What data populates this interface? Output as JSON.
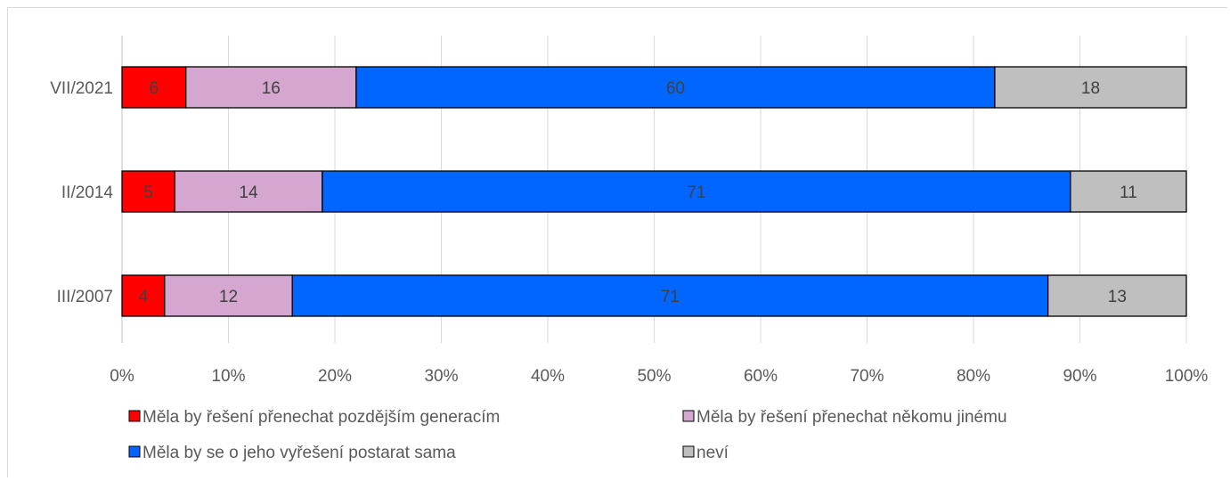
{
  "chart_data": {
    "type": "bar",
    "orientation": "horizontal",
    "stacked": true,
    "percent_stacked": true,
    "categories": [
      "VII/2021",
      "II/2014",
      "III/2007"
    ],
    "series": [
      {
        "name": "Měla by řešení přenechat pozdějším generacím",
        "color": "#ff0000",
        "values": [
          6,
          5,
          4
        ]
      },
      {
        "name": "Měla by řešení přenechat někomu jinému",
        "color": "#d5a6cf",
        "values": [
          16,
          14,
          12
        ]
      },
      {
        "name": "Měla by se o jeho vyřešení postarat sama",
        "color": "#0066ff",
        "values": [
          60,
          71,
          71
        ]
      },
      {
        "name": "neví",
        "color": "#bfbfbf",
        "values": [
          18,
          11,
          13
        ]
      }
    ],
    "x_ticks": [
      "0%",
      "10%",
      "20%",
      "30%",
      "40%",
      "50%",
      "60%",
      "70%",
      "80%",
      "90%",
      "100%"
    ],
    "xlim": [
      0,
      100
    ],
    "grid": true,
    "legend_position": "bottom",
    "title": "",
    "xlabel": "",
    "ylabel": ""
  }
}
